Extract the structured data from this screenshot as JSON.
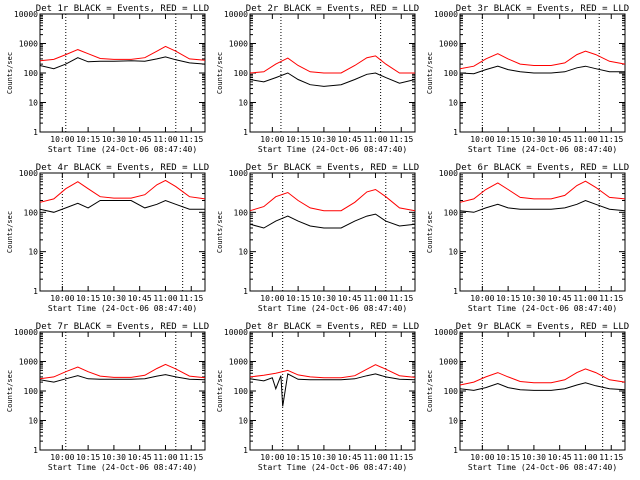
{
  "panel_title_suffix": "BLACK = Events, RED = LLD",
  "xlabel": "Start Time (24-Oct-06 08:47:40)",
  "ylabel": "Counts/sec",
  "x_ticks": [
    "10:00",
    "10:15",
    "10:30",
    "10:45",
    "11:00",
    "11:15"
  ],
  "colors": {
    "events": "#000000",
    "lld": "#ff0000",
    "axes": "#000000"
  },
  "chart_data": [
    {
      "type": "line",
      "title": "Det 1r BLACK = Events, RED = LLD",
      "xlabel": "Start Time (24-Oct-06 08:47:40)",
      "ylabel": "Counts/sec",
      "yscale": "log",
      "ylim": [
        1,
        10000
      ],
      "xlim": [
        "09:47",
        "11:23"
      ],
      "y_ticks": [
        "1",
        "10",
        "100",
        "1000",
        "10000"
      ],
      "x_ticks": [
        "10:00",
        "10:15",
        "10:30",
        "10:45",
        "11:00",
        "11:15"
      ],
      "vlines": [
        "10:02",
        "11:06"
      ],
      "series": [
        {
          "x": [
            "09:47",
            "09:55",
            "10:02",
            "10:09",
            "10:15",
            "10:22",
            "10:30",
            "10:40",
            "10:48",
            "10:55",
            "11:00",
            "11:06",
            "11:14",
            "11:23"
          ],
          "values": [
            260,
            290,
            420,
            620,
            450,
            310,
            290,
            290,
            330,
            550,
            800,
            550,
            300,
            270
          ]
        },
        {
          "x": [
            "09:47",
            "09:55",
            "10:02",
            "10:09",
            "10:15",
            "10:22",
            "10:30",
            "10:40",
            "10:48",
            "10:55",
            "11:00",
            "11:06",
            "11:14",
            "11:23"
          ],
          "values": [
            180,
            140,
            200,
            330,
            240,
            250,
            250,
            260,
            250,
            300,
            350,
            280,
            220,
            200
          ]
        }
      ]
    },
    {
      "type": "line",
      "title": "Det 2r BLACK = Events, RED = LLD",
      "xlabel": "Start Time (24-Oct-06 08:47:40)",
      "ylabel": "Counts/sec",
      "yscale": "log",
      "ylim": [
        1,
        10000
      ],
      "xlim": [
        "09:47",
        "11:23"
      ],
      "y_ticks": [
        "1",
        "10",
        "100",
        "1000",
        "10000"
      ],
      "x_ticks": [
        "10:00",
        "10:15",
        "10:30",
        "10:45",
        "11:00",
        "11:15"
      ],
      "vlines": [
        "10:05",
        "11:03"
      ],
      "series": [
        {
          "x": [
            "09:47",
            "09:55",
            "10:02",
            "10:09",
            "10:15",
            "10:22",
            "10:30",
            "10:40",
            "10:48",
            "10:55",
            "11:00",
            "11:06",
            "11:14",
            "11:23"
          ],
          "values": [
            100,
            110,
            200,
            320,
            180,
            110,
            100,
            100,
            180,
            330,
            380,
            200,
            100,
            100
          ]
        },
        {
          "x": [
            "09:47",
            "09:55",
            "10:02",
            "10:09",
            "10:15",
            "10:22",
            "10:30",
            "10:40",
            "10:48",
            "10:55",
            "11:00",
            "11:06",
            "11:14",
            "11:23"
          ],
          "values": [
            60,
            50,
            70,
            100,
            60,
            40,
            35,
            40,
            60,
            90,
            100,
            70,
            45,
            60
          ]
        }
      ]
    },
    {
      "type": "line",
      "title": "Det 3r BLACK = Events, RED = LLD",
      "xlabel": "Start Time (24-Oct-06 08:47:40)",
      "ylabel": "Counts/sec",
      "yscale": "log",
      "ylim": [
        1,
        10000
      ],
      "xlim": [
        "09:47",
        "11:23"
      ],
      "y_ticks": [
        "1",
        "10",
        "100",
        "1000",
        "10000"
      ],
      "x_ticks": [
        "10:00",
        "10:15",
        "10:30",
        "10:45",
        "11:00",
        "11:15"
      ],
      "vlines": [
        "10:00",
        "11:08"
      ],
      "series": [
        {
          "x": [
            "09:47",
            "09:55",
            "10:02",
            "10:09",
            "10:15",
            "10:22",
            "10:30",
            "10:40",
            "10:48",
            "10:55",
            "11:00",
            "11:06",
            "11:14",
            "11:23"
          ],
          "values": [
            140,
            170,
            300,
            450,
            300,
            200,
            180,
            180,
            220,
            420,
            550,
            420,
            250,
            200
          ]
        },
        {
          "x": [
            "09:47",
            "09:55",
            "10:02",
            "10:09",
            "10:15",
            "10:22",
            "10:30",
            "10:40",
            "10:48",
            "10:55",
            "11:00",
            "11:06",
            "11:14",
            "11:23"
          ],
          "values": [
            100,
            95,
            130,
            170,
            130,
            110,
            100,
            100,
            110,
            150,
            170,
            140,
            110,
            110
          ]
        }
      ]
    },
    {
      "type": "line",
      "title": "Det 4r BLACK = Events, RED = LLD",
      "xlabel": "Start Time (24-Oct-06 08:47:40)",
      "ylabel": "Counts/sec",
      "yscale": "log",
      "ylim": [
        1,
        1000
      ],
      "xlim": [
        "09:47",
        "11:23"
      ],
      "y_ticks": [
        "1",
        "10",
        "100",
        "1000"
      ],
      "x_ticks": [
        "10:00",
        "10:15",
        "10:30",
        "10:45",
        "11:00",
        "11:15"
      ],
      "vlines": [
        "10:00",
        "11:10"
      ],
      "series": [
        {
          "x": [
            "09:47",
            "09:55",
            "10:02",
            "10:09",
            "10:15",
            "10:22",
            "10:30",
            "10:40",
            "10:48",
            "10:55",
            "11:00",
            "11:06",
            "11:14",
            "11:23"
          ],
          "values": [
            180,
            220,
            400,
            600,
            400,
            250,
            230,
            230,
            280,
            500,
            650,
            450,
            250,
            220
          ]
        },
        {
          "x": [
            "09:47",
            "09:55",
            "10:02",
            "10:09",
            "10:15",
            "10:22",
            "10:30",
            "10:40",
            "10:48",
            "10:55",
            "11:00",
            "11:06",
            "11:14",
            "11:23"
          ],
          "values": [
            120,
            100,
            130,
            170,
            130,
            200,
            200,
            200,
            130,
            160,
            200,
            160,
            120,
            120
          ]
        }
      ]
    },
    {
      "type": "line",
      "title": "Det 5r BLACK = Events, RED = LLD",
      "xlabel": "Start Time (24-Oct-06 08:47:40)",
      "ylabel": "Counts/sec",
      "yscale": "log",
      "ylim": [
        1,
        1000
      ],
      "xlim": [
        "09:47",
        "11:23"
      ],
      "y_ticks": [
        "1",
        "10",
        "100",
        "1000"
      ],
      "x_ticks": [
        "10:00",
        "10:15",
        "10:30",
        "10:45",
        "11:00",
        "11:15"
      ],
      "vlines": [
        "10:06",
        "11:06"
      ],
      "series": [
        {
          "x": [
            "09:47",
            "09:55",
            "10:02",
            "10:09",
            "10:15",
            "10:22",
            "10:30",
            "10:40",
            "10:48",
            "10:55",
            "11:00",
            "11:06",
            "11:14",
            "11:23"
          ],
          "values": [
            110,
            140,
            250,
            320,
            200,
            130,
            110,
            110,
            180,
            330,
            380,
            250,
            130,
            110
          ]
        },
        {
          "x": [
            "09:47",
            "09:55",
            "10:02",
            "10:09",
            "10:15",
            "10:22",
            "10:30",
            "10:40",
            "10:48",
            "10:55",
            "11:00",
            "11:06",
            "11:14",
            "11:23"
          ],
          "values": [
            50,
            40,
            60,
            80,
            60,
            45,
            40,
            40,
            60,
            80,
            90,
            60,
            45,
            50
          ]
        }
      ]
    },
    {
      "type": "line",
      "title": "Det 6r BLACK = Events, RED = LLD",
      "xlabel": "Start Time (24-Oct-06 08:47:40)",
      "ylabel": "Counts/sec",
      "yscale": "log",
      "ylim": [
        1,
        1000
      ],
      "xlim": [
        "09:47",
        "11:23"
      ],
      "y_ticks": [
        "1",
        "10",
        "100",
        "1000"
      ],
      "x_ticks": [
        "10:00",
        "10:15",
        "10:30",
        "10:45",
        "11:00",
        "11:15"
      ],
      "vlines": [
        "10:00",
        "11:08"
      ],
      "series": [
        {
          "x": [
            "09:47",
            "09:55",
            "10:02",
            "10:09",
            "10:15",
            "10:22",
            "10:30",
            "10:40",
            "10:48",
            "10:55",
            "11:00",
            "11:06",
            "11:14",
            "11:23"
          ],
          "values": [
            180,
            220,
            380,
            560,
            380,
            240,
            220,
            220,
            270,
            480,
            620,
            430,
            240,
            220
          ]
        },
        {
          "x": [
            "09:47",
            "09:55",
            "10:02",
            "10:09",
            "10:15",
            "10:22",
            "10:30",
            "10:40",
            "10:48",
            "10:55",
            "11:00",
            "11:06",
            "11:14",
            "11:23"
          ],
          "values": [
            110,
            100,
            130,
            160,
            130,
            120,
            120,
            120,
            130,
            160,
            200,
            160,
            120,
            110
          ]
        }
      ]
    },
    {
      "type": "line",
      "title": "Det 7r BLACK = Events, RED = LLD",
      "xlabel": "Start Time (24-Oct-06 08:47:40)",
      "ylabel": "Counts/sec",
      "yscale": "log",
      "ylim": [
        1,
        10000
      ],
      "xlim": [
        "09:47",
        "11:23"
      ],
      "y_ticks": [
        "1",
        "10",
        "100",
        "1000",
        "10000"
      ],
      "x_ticks": [
        "10:00",
        "10:15",
        "10:30",
        "10:45",
        "11:00",
        "11:15"
      ],
      "vlines": [
        "10:02",
        "11:06"
      ],
      "series": [
        {
          "x": [
            "09:47",
            "09:55",
            "10:02",
            "10:09",
            "10:15",
            "10:22",
            "10:30",
            "10:40",
            "10:48",
            "10:55",
            "11:00",
            "11:06",
            "11:14",
            "11:23"
          ],
          "values": [
            260,
            300,
            450,
            650,
            450,
            320,
            290,
            290,
            340,
            580,
            800,
            560,
            320,
            280
          ]
        },
        {
          "x": [
            "09:47",
            "09:55",
            "10:02",
            "10:09",
            "10:15",
            "10:22",
            "10:30",
            "10:40",
            "10:48",
            "10:55",
            "11:00",
            "11:06",
            "11:14",
            "11:23"
          ],
          "values": [
            240,
            200,
            260,
            330,
            260,
            250,
            250,
            250,
            260,
            320,
            360,
            300,
            250,
            240
          ]
        }
      ]
    },
    {
      "type": "line",
      "title": "Det 8r BLACK = Events, RED = LLD",
      "xlabel": "Start Time (24-Oct-06 08:47:40)",
      "ylabel": "Counts/sec",
      "yscale": "log",
      "ylim": [
        1,
        10000
      ],
      "xlim": [
        "09:47",
        "11:23"
      ],
      "y_ticks": [
        "1",
        "10",
        "100",
        "1000",
        "10000"
      ],
      "x_ticks": [
        "10:00",
        "10:15",
        "10:30",
        "10:45",
        "11:00",
        "11:15"
      ],
      "vlines": [
        "10:06",
        "11:06"
      ],
      "series": [
        {
          "x": [
            "09:47",
            "09:55",
            "10:02",
            "10:09",
            "10:15",
            "10:22",
            "10:30",
            "10:40",
            "10:48",
            "10:55",
            "11:00",
            "11:06",
            "11:14",
            "11:23"
          ],
          "values": [
            300,
            340,
            400,
            500,
            350,
            300,
            280,
            280,
            330,
            550,
            780,
            550,
            330,
            290
          ]
        },
        {
          "x": [
            "09:47",
            "09:55",
            "10:00",
            "10:02",
            "10:05",
            "10:06",
            "10:09",
            "10:15",
            "10:22",
            "10:30",
            "10:40",
            "10:48",
            "10:55",
            "11:00",
            "11:06",
            "11:14",
            "11:23"
          ],
          "values": [
            260,
            220,
            280,
            120,
            330,
            30,
            380,
            250,
            240,
            240,
            240,
            260,
            330,
            380,
            300,
            250,
            240
          ]
        }
      ]
    },
    {
      "type": "line",
      "title": "Det 9r BLACK = Events, RED = LLD",
      "xlabel": "Start Time (24-Oct-06 08:47:40)",
      "ylabel": "Counts/sec",
      "yscale": "log",
      "ylim": [
        1,
        10000
      ],
      "xlim": [
        "09:47",
        "11:23"
      ],
      "y_ticks": [
        "1",
        "10",
        "100",
        "1000",
        "10000"
      ],
      "x_ticks": [
        "10:00",
        "10:15",
        "10:30",
        "10:45",
        "11:00",
        "11:15"
      ],
      "vlines": [
        "10:00",
        "11:10"
      ],
      "series": [
        {
          "x": [
            "09:47",
            "09:55",
            "10:02",
            "10:09",
            "10:15",
            "10:22",
            "10:30",
            "10:40",
            "10:48",
            "10:55",
            "11:00",
            "11:06",
            "11:14",
            "11:23"
          ],
          "values": [
            160,
            200,
            300,
            420,
            300,
            210,
            190,
            190,
            240,
            420,
            560,
            420,
            240,
            200
          ]
        },
        {
          "x": [
            "09:47",
            "09:55",
            "10:02",
            "10:09",
            "10:15",
            "10:22",
            "10:30",
            "10:40",
            "10:48",
            "10:55",
            "11:00",
            "11:06",
            "11:14",
            "11:23"
          ],
          "values": [
            120,
            105,
            130,
            180,
            130,
            110,
            105,
            105,
            120,
            160,
            190,
            150,
            120,
            110
          ]
        }
      ]
    }
  ]
}
